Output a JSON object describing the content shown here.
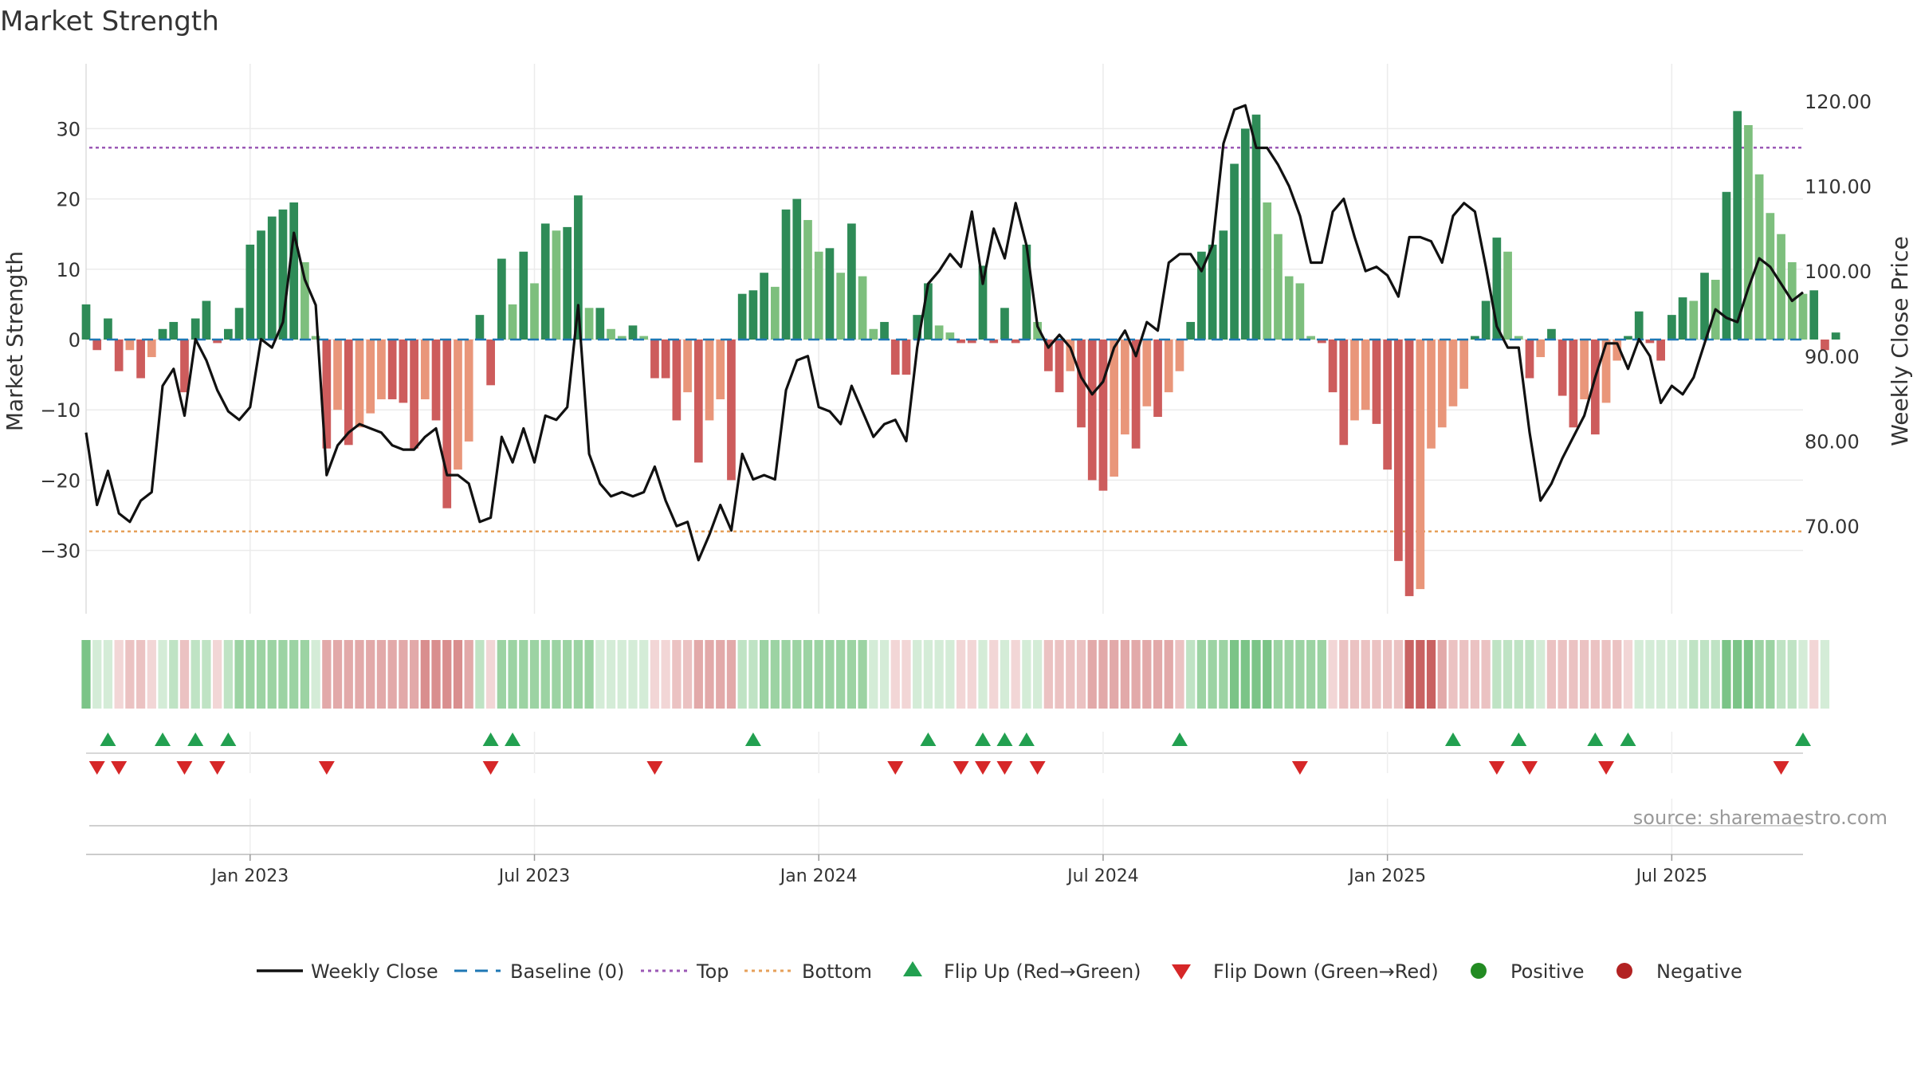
{
  "chart_data": {
    "type": "bar+line",
    "title": "Market Strength",
    "ylabel_left": "Market Strength",
    "ylabel_right": "Weekly Close Price",
    "ylim_left": [
      -39,
      39
    ],
    "ylim_right": [
      59.7,
      124.2
    ],
    "yticks_left": [
      30,
      20,
      10,
      0,
      -10,
      -20,
      -30
    ],
    "ytick_labels_left": [
      "30",
      "20",
      "10",
      "0",
      "−10",
      "−20",
      "−30"
    ],
    "yticks_right": [
      120,
      110,
      100,
      90,
      80,
      70
    ],
    "ytick_labels_right": [
      "120.00",
      "110.00",
      "100.00",
      "90.00",
      "80.00",
      "70.00"
    ],
    "top_threshold": 27.3,
    "bottom_threshold": -27.3,
    "x_range": [
      0,
      157
    ],
    "x_ticks": [
      15,
      41,
      67,
      93,
      119,
      145
    ],
    "x_tick_labels": [
      "Jan 2023",
      "Jul 2023",
      "Jan 2024",
      "Jul 2024",
      "Jan 2025",
      "Jul 2025"
    ],
    "strength": [
      5,
      -1.5,
      3,
      -4.5,
      -1.5,
      -5.5,
      -2.5,
      1.5,
      2.5,
      -7.5,
      3,
      5.5,
      -0.5,
      1.5,
      4.5,
      13.5,
      15.5,
      17.5,
      18.5,
      19.5,
      11,
      0.5,
      -15.5,
      -10,
      -15,
      -12.5,
      -10.5,
      -8.5,
      -8.5,
      -9,
      -15.5,
      -8.5,
      -11.5,
      -24,
      -18.5,
      -14.5,
      3.5,
      -6.5,
      11.5,
      5,
      12.5,
      8,
      16.5,
      15.5,
      16,
      20.5,
      4.5,
      4.5,
      1.5,
      0.5,
      2,
      0.5,
      -5.5,
      -5.5,
      -11.5,
      -7.5,
      -17.5,
      -11.5,
      -8.5,
      -20,
      6.5,
      7,
      9.5,
      7.5,
      18.5,
      20,
      17,
      12.5,
      13,
      9.5,
      16.5,
      9,
      1.5,
      2.5,
      -5,
      -5,
      3.5,
      8,
      2,
      1,
      -0.5,
      -0.5,
      10.5,
      -0.5,
      4.5,
      -0.5,
      13.5,
      2.5,
      -4.5,
      -7.5,
      -4.5,
      -12.5,
      -20,
      -21.5,
      -19.5,
      -13.5,
      -15.5,
      -9.5,
      -11,
      -7.5,
      -4.5,
      2.5,
      12.5,
      13.5,
      15.5,
      25,
      30,
      32,
      19.5,
      15,
      9,
      8,
      0.5,
      -0.5,
      -7.5,
      -15,
      -11.5,
      -10,
      -12,
      -18.5,
      -31.5,
      -36.5,
      -35.5,
      -15.5,
      -12.5,
      -9.5,
      -7,
      0.5,
      5.5,
      14.5,
      12.5,
      0.5,
      -5.5,
      -2.5,
      1.5,
      -8,
      -12.5,
      -8.5,
      -13.5,
      -9,
      -3,
      0.5,
      4,
      -0.5,
      -3,
      3.5,
      6,
      5.5,
      9.5,
      8.5,
      21,
      32.5,
      30.5,
      23.5,
      18,
      15,
      11,
      6.5,
      7,
      -1.5,
      1
    ],
    "close": [
      81,
      72.5,
      76.5,
      71.5,
      70.5,
      73,
      74,
      86.5,
      88.5,
      83,
      92,
      89.5,
      86,
      83.5,
      82.5,
      84,
      92,
      91,
      94,
      104.5,
      99,
      96,
      76,
      79.5,
      81,
      82,
      81.5,
      81,
      79.5,
      79,
      79,
      80.5,
      81.5,
      76,
      76,
      75,
      70.5,
      71,
      80.5,
      77.5,
      81.5,
      77.5,
      83,
      82.5,
      84,
      96,
      78.5,
      75,
      73.5,
      74,
      73.5,
      74,
      77,
      73,
      70,
      70.5,
      66,
      69,
      72.5,
      69.5,
      78.5,
      75.5,
      76,
      75.5,
      86,
      89.5,
      90,
      84,
      83.5,
      82,
      86.5,
      83.5,
      80.5,
      82,
      82.5,
      80,
      91,
      98.5,
      100,
      102,
      100.5,
      107,
      98.5,
      105,
      101.5,
      108,
      103,
      93.5,
      91,
      92.5,
      91,
      87.5,
      85.5,
      87,
      91,
      93,
      90,
      94,
      93,
      101,
      102,
      102,
      100,
      103,
      115,
      119,
      119.5,
      114.5,
      114.5,
      112.5,
      110,
      106.5,
      101,
      101,
      107,
      108.5,
      104,
      100,
      100.5,
      99.5,
      97,
      104,
      104,
      103.5,
      101,
      106.5,
      108,
      107,
      100.5,
      93.5,
      91,
      91,
      81,
      73,
      75,
      78,
      80.5,
      83,
      87.5,
      91.5,
      91.5,
      88.5,
      92,
      90,
      84.5,
      86.5,
      85.5,
      87.5,
      91.5,
      95.5,
      94.5,
      94,
      98,
      101.5,
      100.5,
      98.5,
      96.5,
      97.5
    ],
    "strip_values": [
      4,
      0.5,
      1,
      -1,
      -2,
      -2,
      -1,
      1,
      2,
      -2,
      2,
      2,
      -1,
      2,
      3,
      3,
      3,
      3,
      3,
      3,
      3,
      0.5,
      -3,
      -3,
      -3,
      -3,
      -3,
      -3,
      -3,
      -3,
      -3,
      -4,
      -4,
      -4,
      -4,
      -3,
      2,
      -1,
      3,
      3,
      3,
      3,
      3,
      3,
      3,
      3,
      3,
      1,
      1,
      1,
      1,
      1,
      -1,
      -1,
      -2,
      -2,
      -3,
      -3,
      -3,
      -3,
      2,
      2,
      3,
      3,
      3,
      3,
      3,
      3,
      3,
      3,
      3,
      3,
      1,
      1,
      -1,
      -1,
      1,
      1,
      1,
      1,
      -1,
      -1,
      1,
      -1,
      1,
      -1,
      1,
      1,
      -2,
      -2,
      -2,
      -2,
      -3,
      -3,
      -3,
      -3,
      -3,
      -3,
      -3,
      -3,
      -2,
      2,
      3,
      3,
      3,
      4,
      4,
      4,
      4,
      3,
      3,
      3,
      3,
      3,
      -1,
      -2,
      -2,
      -2,
      -2,
      -2,
      -2,
      -5,
      -5,
      -5,
      -3,
      -2,
      -2,
      -2,
      -2,
      2,
      2,
      2,
      2,
      0.5,
      -2,
      -2,
      -2,
      -2,
      -2,
      -2,
      -2,
      -1,
      1,
      1,
      1,
      1,
      1,
      2,
      2,
      2,
      4,
      4,
      4,
      3,
      3,
      2,
      2,
      1,
      -1,
      1
    ],
    "flip_up_weeks": [
      2,
      7,
      10,
      13,
      37,
      39,
      61,
      77,
      82,
      84,
      86,
      100,
      125,
      131,
      138,
      141,
      157
    ],
    "flip_down_weeks": [
      1,
      3,
      9,
      12,
      22,
      37,
      52,
      74,
      80,
      82,
      84,
      87,
      111,
      129,
      132,
      139,
      155
    ],
    "legend": [
      "Weekly Close",
      "Baseline (0)",
      "Top",
      "Bottom",
      "Flip Up (Red→Green)",
      "Flip Down (Green→Red)",
      "Positive",
      "Negative"
    ],
    "source": "source: sharemaestro.com"
  },
  "colors": {
    "positive_dark": "#2e8b57",
    "positive_light": "#7dbf7d",
    "negative_dark": "#cd5c5c",
    "negative_light": "#e9967a",
    "close_line": "#111111",
    "baseline": "#1f77b4",
    "top": "#9b59b6",
    "bottom": "#e6a05a",
    "flip_up": "#22a050",
    "flip_down": "#d62728",
    "legend_positive": "#228b22",
    "legend_negative": "#b22222"
  }
}
